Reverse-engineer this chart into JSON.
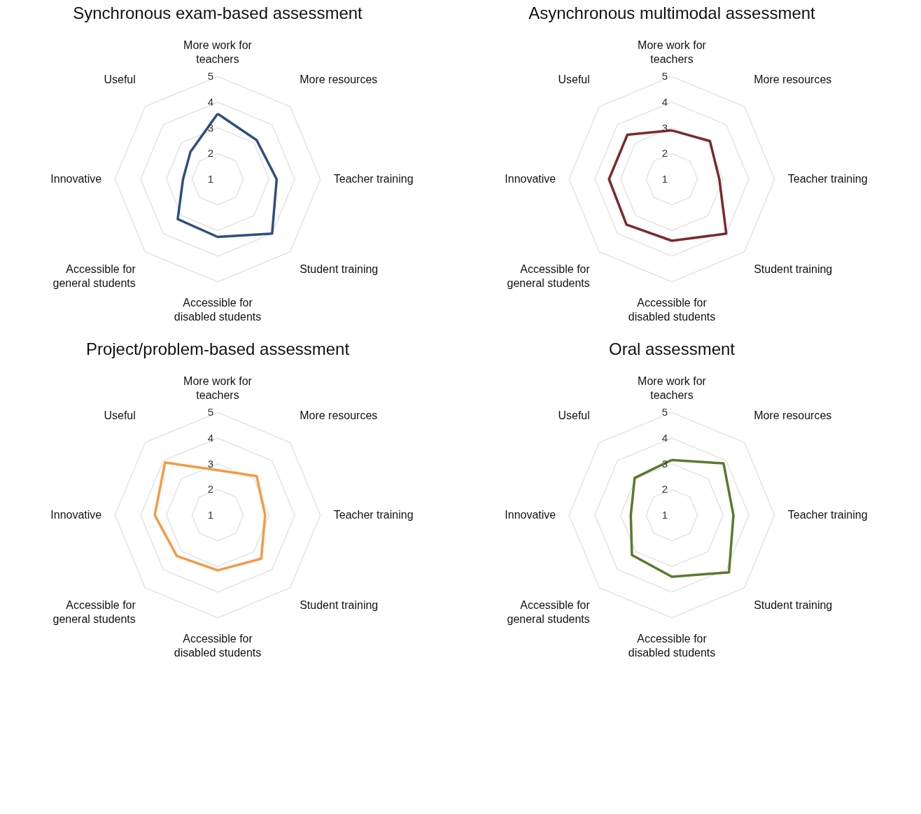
{
  "chart_data": [
    {
      "type": "radar",
      "title": "Synchronous exam-based assessment",
      "categories": [
        "More work for teachers",
        "More resources",
        "Teacher training",
        "Student training",
        "Accessible for disabled students",
        "Accessible for general students",
        "Innovative",
        "Useful"
      ],
      "ylim": [
        1,
        5
      ],
      "yticks": [
        1,
        2,
        3,
        4,
        5
      ],
      "grid": true,
      "series": [
        {
          "color": "#2e4f7f",
          "values": [
            3.55,
            3.15,
            3.3,
            4.0,
            3.25,
            3.2,
            2.35,
            2.5
          ]
        }
      ]
    },
    {
      "type": "radar",
      "title": "Asynchronous multimodal assessment",
      "categories": [
        "More work for teachers",
        "More resources",
        "Teacher training",
        "Student training",
        "Accessible for disabled students",
        "Accessible for general students",
        "Innovative",
        "Useful"
      ],
      "ylim": [
        1,
        5
      ],
      "yticks": [
        1,
        2,
        3,
        4,
        5
      ],
      "grid": true,
      "series": [
        {
          "color": "#7b2a2a",
          "values": [
            2.9,
            3.1,
            2.85,
            4.0,
            3.4,
            3.5,
            3.45,
            3.45
          ]
        }
      ]
    },
    {
      "type": "radar",
      "title": "Project/problem-based assessment",
      "categories": [
        "More work for teachers",
        "More resources",
        "Teacher training",
        "Student training",
        "Accessible for disabled students",
        "Accessible for general students",
        "Innovative",
        "Useful"
      ],
      "ylim": [
        1,
        5
      ],
      "yticks": [
        1,
        2,
        3,
        4,
        5
      ],
      "grid": true,
      "series": [
        {
          "color": "#f59a45",
          "values": [
            2.75,
            3.15,
            2.85,
            3.4,
            3.15,
            3.25,
            3.45,
            3.9
          ]
        }
      ]
    },
    {
      "type": "radar",
      "title": "Oral assessment",
      "categories": [
        "More work for teachers",
        "More resources",
        "Teacher training",
        "Student training",
        "Accessible for disabled students",
        "Accessible for general students",
        "Innovative",
        "Useful"
      ],
      "ylim": [
        1,
        5
      ],
      "yticks": [
        1,
        2,
        3,
        4,
        5
      ],
      "grid": true,
      "series": [
        {
          "color": "#5a7a2e",
          "values": [
            3.15,
            3.85,
            3.4,
            4.15,
            3.4,
            3.2,
            2.6,
            3.05
          ]
        }
      ]
    }
  ]
}
